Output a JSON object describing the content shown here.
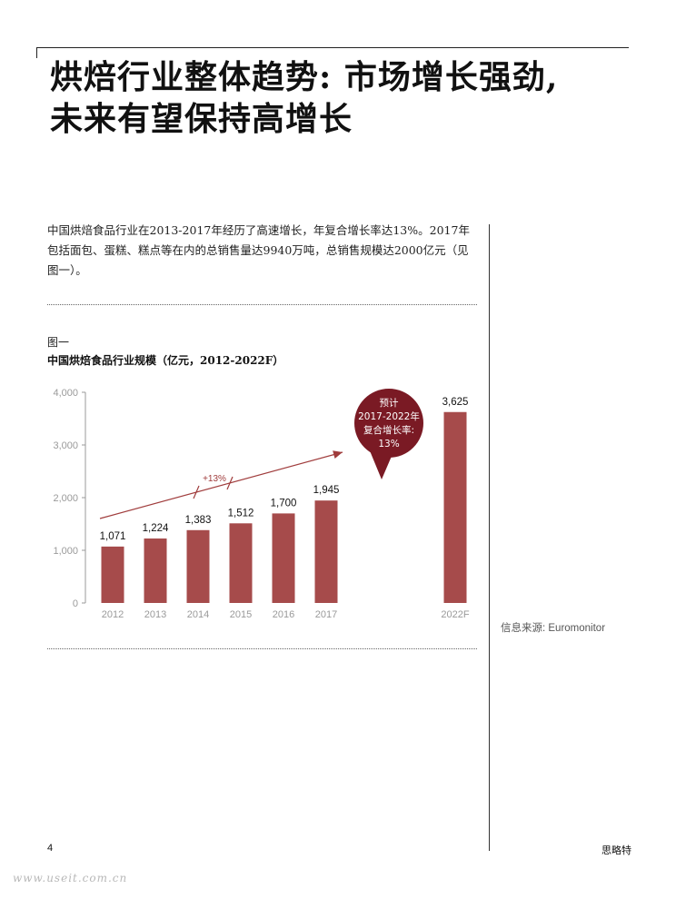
{
  "header": {
    "title_line1": "烘焙行业整体趋势: 市场增长强劲,",
    "title_line2": "未来有望保持高增长"
  },
  "intro": {
    "text": "中国烘焙食品行业在2013-2017年经历了高速增长，年复合增长率达13%。2017年包括面包、蛋糕、糕点等在内的总销售量达9940万吨，总销售规模达2000亿元（见图一）。"
  },
  "figure": {
    "label": "图一",
    "title": "中国烘焙食品行业规模（亿元，2012-2022F）",
    "source": "信息来源: Euromonitor"
  },
  "chart_data": {
    "type": "bar",
    "categories": [
      "2012",
      "2013",
      "2014",
      "2015",
      "2016",
      "2017",
      "2022F"
    ],
    "values": [
      1071,
      1224,
      1383,
      1512,
      1700,
      1945,
      3625
    ],
    "value_labels": [
      "1,071",
      "1,224",
      "1,383",
      "1,512",
      "1,700",
      "1,945",
      "3,625"
    ],
    "yticks": [
      0,
      1000,
      2000,
      3000,
      4000
    ],
    "ytick_labels": [
      "0",
      "1,000",
      "2,000",
      "3,000",
      "4,000"
    ],
    "ylim": [
      0,
      4000
    ],
    "title": "",
    "xlabel": "",
    "ylabel": "",
    "grid": false,
    "bar_color": "#a64b4b",
    "trend_arrow": {
      "label": "+13%",
      "from": "2012",
      "to": "2017",
      "color": "#a03c3c"
    },
    "callout": {
      "lines": [
        "预计",
        "2017-2022年",
        "复合增长率:",
        "13%"
      ],
      "color": "#7a1a24",
      "text_color": "#ffffff"
    }
  },
  "footer": {
    "page_number": "4",
    "brand": "思略特",
    "watermark": "www.useit.com.cn"
  }
}
